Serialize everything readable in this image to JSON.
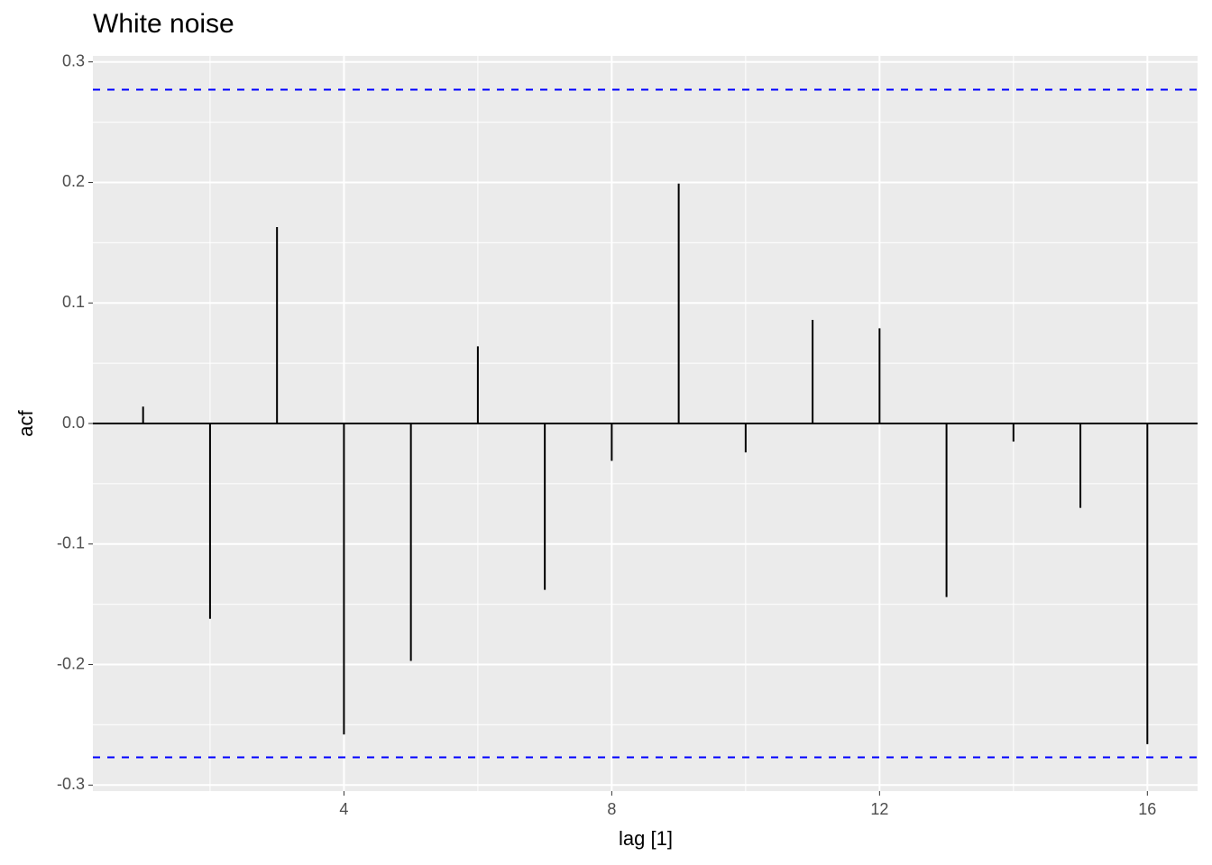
{
  "chart_data": {
    "type": "acf",
    "title": "White noise",
    "xlabel": "lag [1]",
    "ylabel": "acf",
    "x": [
      1,
      2,
      3,
      4,
      5,
      6,
      7,
      8,
      9,
      10,
      11,
      12,
      13,
      14,
      15,
      16
    ],
    "values": [
      0.014,
      -0.162,
      0.163,
      -0.258,
      -0.197,
      0.064,
      -0.138,
      -0.031,
      0.199,
      -0.024,
      0.086,
      0.079,
      -0.144,
      -0.015,
      -0.07,
      -0.266
    ],
    "color": "#000000",
    "ci_lines": [
      0.277,
      -0.277
    ],
    "ci_color": "#0000ff",
    "xlim": [
      0.25,
      16.75
    ],
    "ylim": [
      -0.305,
      0.305
    ],
    "xticks": [
      4,
      8,
      12,
      16
    ],
    "yticks": [
      {
        "value": -0.3,
        "label": "-0.3"
      },
      {
        "value": -0.2,
        "label": "-0.2"
      },
      {
        "value": -0.1,
        "label": "-0.1"
      },
      {
        "value": 0,
        "label": "0.0"
      },
      {
        "value": 0.1,
        "label": "0.1"
      },
      {
        "value": 0.2,
        "label": "0.2"
      },
      {
        "value": 0.3,
        "label": "0.3"
      }
    ],
    "grid": true
  }
}
